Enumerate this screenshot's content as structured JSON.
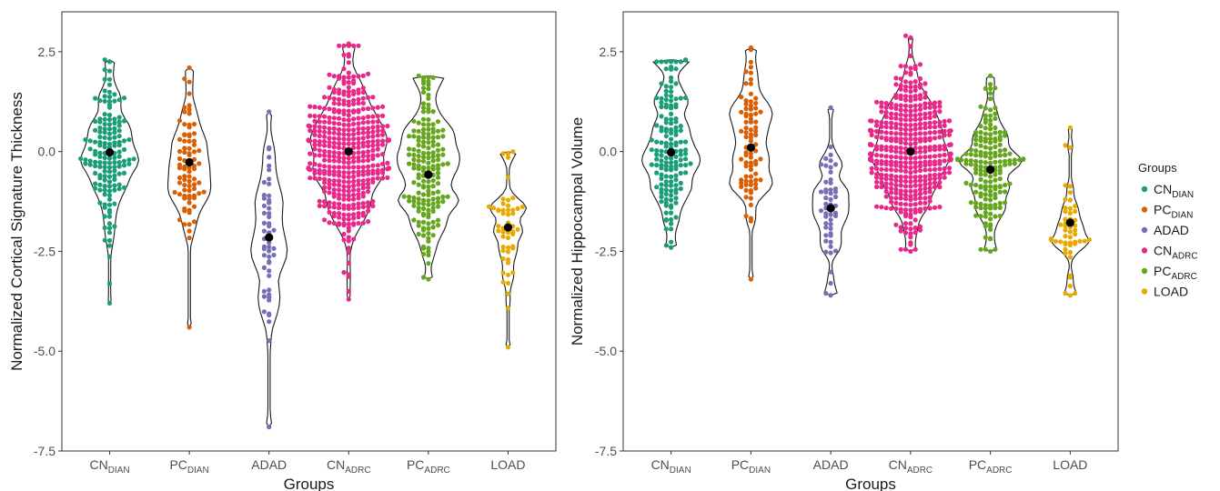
{
  "chart_data": [
    {
      "type": "violin-beeswarm",
      "ylabel": "Normalized Cortical Signature Thickness",
      "xlabel": "Groups",
      "ylim": [
        -7.5,
        3.5
      ],
      "yticks": [
        "2.5",
        "0.0",
        "-2.5",
        "-5.0",
        "-7.5"
      ],
      "ytick_values": [
        2.5,
        0.0,
        -2.5,
        -5.0,
        -7.5
      ],
      "grid": false,
      "categories": [
        {
          "base": "CN",
          "sub": "DIAN",
          "color": "#1b9e77",
          "mean": -0.02,
          "min": -3.8,
          "max": 2.3,
          "n": 150
        },
        {
          "base": "PC",
          "sub": "DIAN",
          "color": "#d95f02",
          "mean": -0.27,
          "min": -4.4,
          "max": 2.1,
          "n": 80
        },
        {
          "base": "ADAD",
          "sub": "",
          "color": "#7570b3",
          "mean": -2.15,
          "min": -6.9,
          "max": 1.0,
          "n": 50
        },
        {
          "base": "CN",
          "sub": "ADRC",
          "color": "#e7298a",
          "mean": 0.0,
          "min": -3.7,
          "max": 2.7,
          "n": 420
        },
        {
          "base": "PC",
          "sub": "ADRC",
          "color": "#66a61e",
          "mean": -0.58,
          "min": -3.2,
          "max": 1.9,
          "n": 170
        },
        {
          "base": "LOAD",
          "sub": "",
          "color": "#e6ab02",
          "mean": -1.9,
          "min": -4.9,
          "max": 0.0,
          "n": 50
        }
      ]
    },
    {
      "type": "violin-beeswarm",
      "ylabel": "Normalized Hippocampal Volume",
      "xlabel": "Groups",
      "ylim": [
        -7.5,
        3.5
      ],
      "yticks": [
        "2.5",
        "0.0",
        "-2.5",
        "-5.0",
        "-7.5"
      ],
      "ytick_values": [
        2.5,
        0.0,
        -2.5,
        -5.0,
        -7.5
      ],
      "grid": false,
      "categories": [
        {
          "base": "CN",
          "sub": "DIAN",
          "color": "#1b9e77",
          "mean": -0.02,
          "min": -2.4,
          "max": 2.3,
          "n": 150
        },
        {
          "base": "PC",
          "sub": "DIAN",
          "color": "#d95f02",
          "mean": 0.1,
          "min": -3.2,
          "max": 2.6,
          "n": 80
        },
        {
          "base": "ADAD",
          "sub": "",
          "color": "#7570b3",
          "mean": -1.42,
          "min": -3.6,
          "max": 1.1,
          "n": 50
        },
        {
          "base": "CN",
          "sub": "ADRC",
          "color": "#e7298a",
          "mean": 0.0,
          "min": -2.5,
          "max": 2.9,
          "n": 420
        },
        {
          "base": "PC",
          "sub": "ADRC",
          "color": "#66a61e",
          "mean": -0.45,
          "min": -2.5,
          "max": 1.9,
          "n": 170
        },
        {
          "base": "LOAD",
          "sub": "",
          "color": "#e6ab02",
          "mean": -1.78,
          "min": -3.6,
          "max": 0.6,
          "n": 50
        }
      ]
    }
  ],
  "legend": {
    "title": "Groups",
    "placement": "right",
    "items": [
      {
        "base": "CN",
        "sub": "DIAN",
        "color": "#1b9e77"
      },
      {
        "base": "PC",
        "sub": "DIAN",
        "color": "#d95f02"
      },
      {
        "base": "ADAD",
        "sub": "",
        "color": "#7570b3"
      },
      {
        "base": "CN",
        "sub": "ADRC",
        "color": "#e7298a"
      },
      {
        "base": "PC",
        "sub": "ADRC",
        "color": "#66a61e"
      },
      {
        "base": "LOAD",
        "sub": "",
        "color": "#e6ab02"
      }
    ]
  },
  "mean_marker_color": "#000000"
}
